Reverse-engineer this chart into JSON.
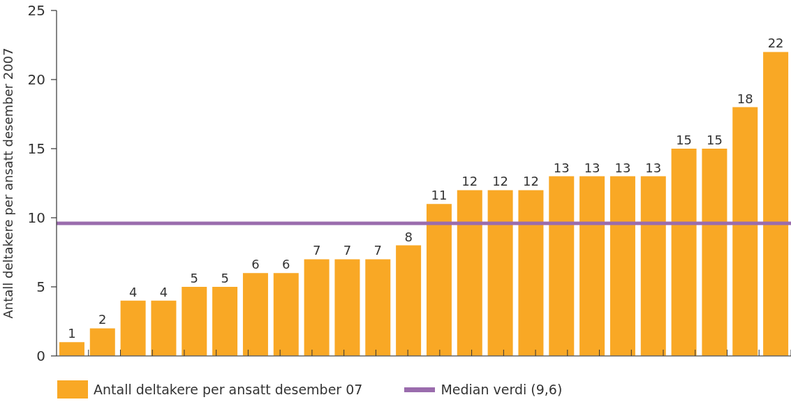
{
  "chart_data": {
    "type": "bar",
    "ylabel": "Antall deltakere per ansatt desember 2007",
    "categories": [
      null,
      null,
      null,
      null,
      null,
      null,
      null,
      null,
      null,
      null,
      null,
      null,
      null,
      null,
      null,
      null,
      null,
      null,
      null,
      null,
      null,
      null,
      null,
      null
    ],
    "series": [
      {
        "name": "Antall deltakere per ansatt desember 07",
        "color": "#f9a825",
        "values": [
          1,
          2,
          4,
          4,
          5,
          5,
          6,
          6,
          7,
          7,
          7,
          8,
          11,
          12,
          12,
          12,
          13,
          13,
          13,
          13,
          15,
          15,
          18,
          22
        ]
      }
    ],
    "ylim": [
      0,
      25
    ],
    "yticks": [
      0,
      5,
      10,
      15,
      20,
      25
    ],
    "data_labels": true,
    "ref_lines": [
      {
        "axis": "y",
        "value": 9.6,
        "label": "Median verdi (9,6)",
        "color": "#9a6cad"
      }
    ],
    "legend": "bottom"
  }
}
